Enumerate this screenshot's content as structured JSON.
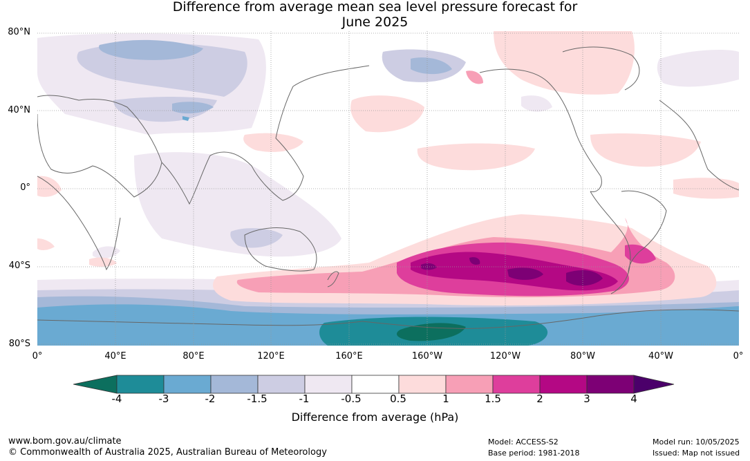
{
  "title": {
    "line1": "Difference from average mean sea level pressure forecast for",
    "line2": "June 2025"
  },
  "map": {
    "lat_labels": [
      "80°N",
      "40°N",
      "0°",
      "40°S",
      "80°S"
    ],
    "lon_labels": [
      "0°",
      "40°E",
      "80°E",
      "120°E",
      "160°E",
      "160°W",
      "120°W",
      "80°W",
      "40°W",
      "0°"
    ]
  },
  "colorbar": {
    "title": "Difference from average (hPa)",
    "ticks": [
      "-4",
      "-3",
      "-2",
      "-1.5",
      "-1",
      "-0.5",
      "0.5",
      "1",
      "1.5",
      "2",
      "3",
      "4"
    ],
    "colors": [
      "#1e8c98",
      "#6aaad2",
      "#a4b8d8",
      "#cdcde3",
      "#efe8f2",
      "#ffffff",
      "#fddcdc",
      "#f79fb6",
      "#de3e9c",
      "#b40884",
      "#7d0075"
    ],
    "under_color": "#0c6f5e",
    "over_color": "#4b006a"
  },
  "footer": {
    "url": "www.bom.gov.au/climate",
    "copyright": "© Commonwealth of Australia 2025, Australian Bureau of Meteorology",
    "model": "Model: ACCESS-S2",
    "base_period": "Base period: 1981-2018",
    "model_run": "Model run: 10/05/2025",
    "issued": "Issued: Map not issued"
  }
}
